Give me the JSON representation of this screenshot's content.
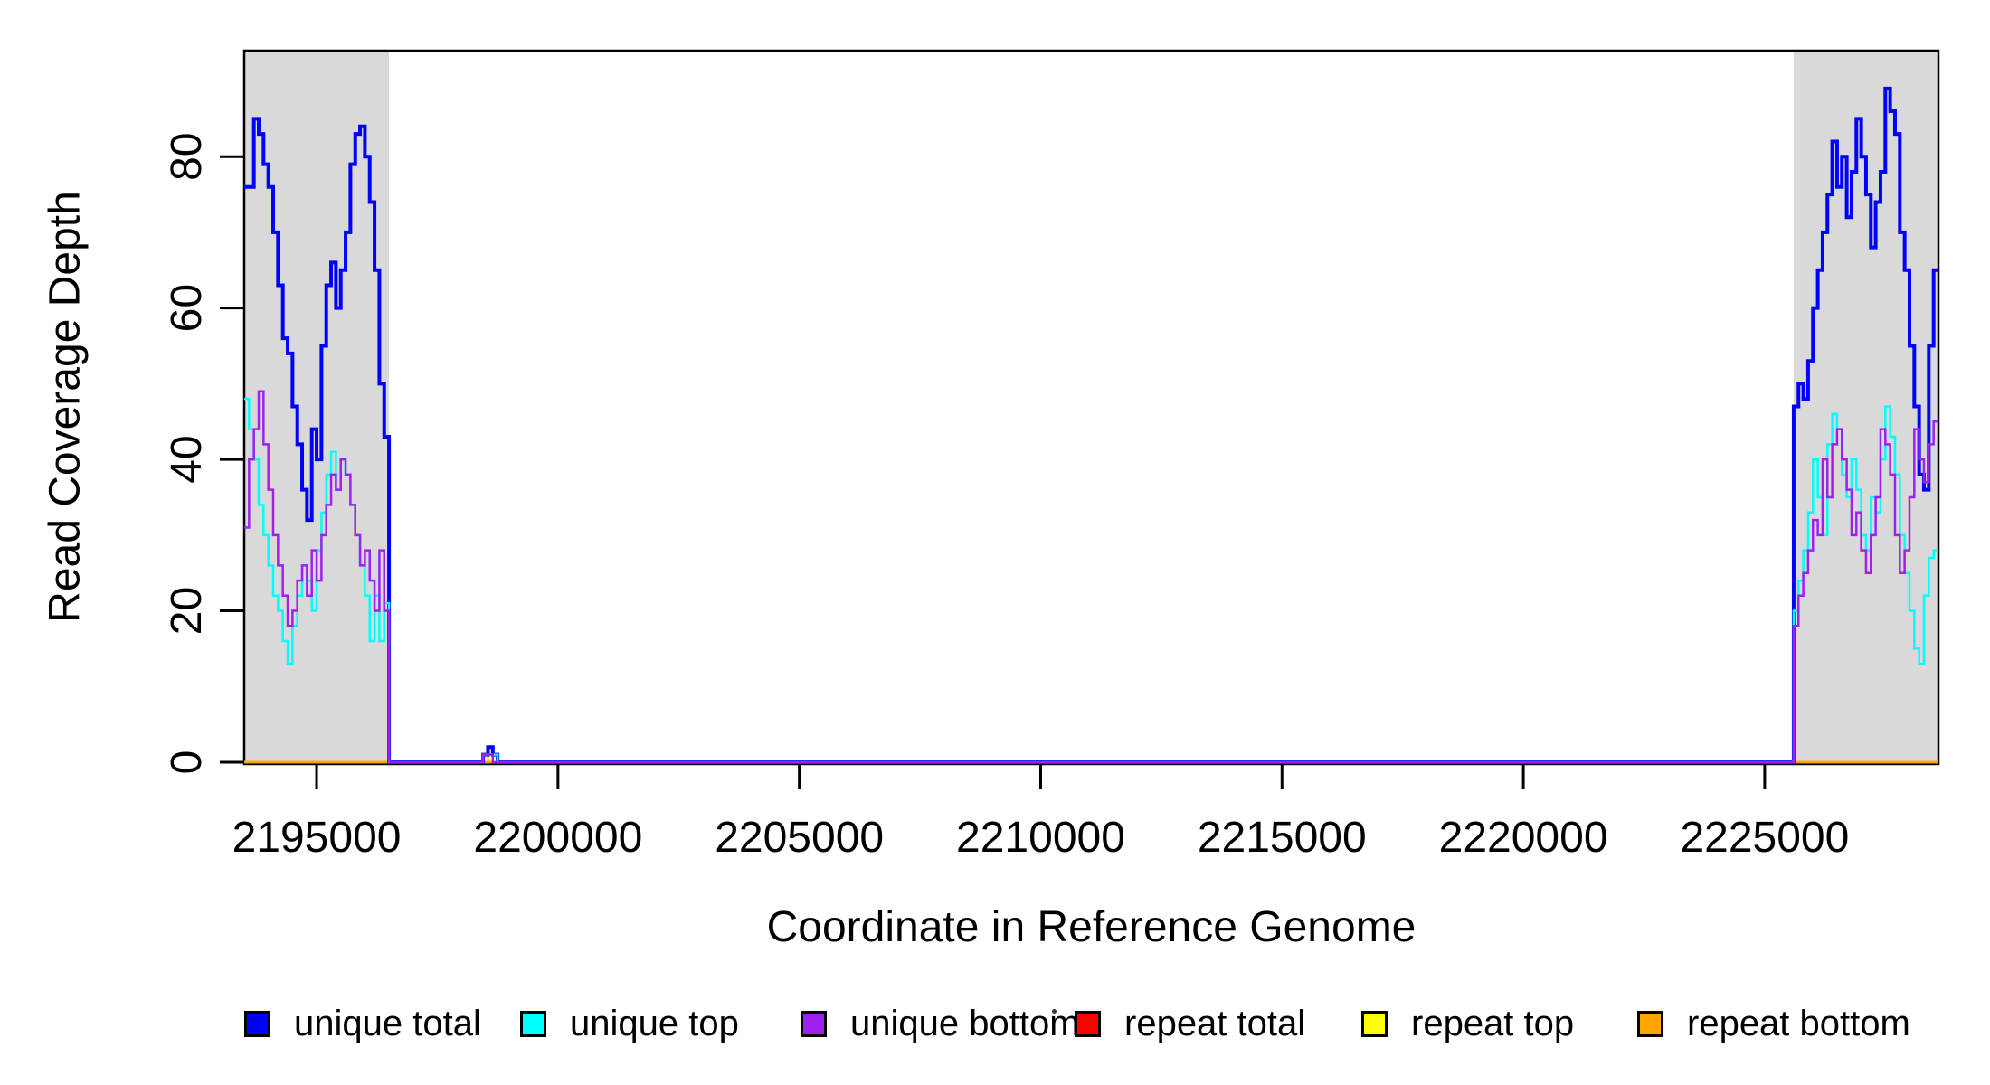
{
  "figure": {
    "background": "#FFFFFF",
    "axis_color": "#000000",
    "shaded_region_color": "#D9D9D9"
  },
  "chart_data": {
    "type": "line",
    "subtype": "step",
    "title": "",
    "xlabel": "Coordinate in Reference Genome",
    "ylabel": "Read Coverage Depth",
    "xlim": [
      2193500,
      2228600
    ],
    "ylim": [
      0,
      94
    ],
    "grid": false,
    "legend_position": "bottom",
    "x_ticks": {
      "values": [
        2195000,
        2200000,
        2205000,
        2210000,
        2215000,
        2220000,
        2225000
      ],
      "labels": [
        "2195000",
        "2200000",
        "2205000",
        "2210000",
        "2215000",
        "2220000",
        "2225000"
      ]
    },
    "y_ticks": {
      "values": [
        0,
        20,
        40,
        60,
        80
      ],
      "labels": [
        "0",
        "20",
        "40",
        "60",
        "80"
      ]
    },
    "shaded_regions": [
      {
        "x0": 2193500,
        "x1": 2196500
      },
      {
        "x0": 2225600,
        "x1": 2228600
      }
    ],
    "draw_order": [
      "repeat total",
      "repeat top",
      "repeat bottom",
      "unique total",
      "unique top",
      "unique bottom"
    ],
    "series": [
      {
        "name": "unique total",
        "color": "#0000FF",
        "line_width": 4,
        "segments": [
          {
            "x0": 2193500,
            "dx": 100,
            "values": [
              76,
              76,
              85,
              83,
              79,
              76,
              70,
              63,
              56,
              54,
              47,
              42,
              36,
              32,
              44,
              40,
              55,
              63,
              66,
              60,
              65,
              70,
              79,
              83,
              84,
              80,
              74,
              65,
              50,
              43
            ]
          },
          {
            "x0": 2196500,
            "x1": 2198450,
            "value": 0
          },
          {
            "x0": 2198450,
            "dx": 100,
            "values": [
              1,
              2,
              1
            ]
          },
          {
            "x0": 2198750,
            "x1": 2225600,
            "value": 0
          },
          {
            "x0": 2225600,
            "dx": 100,
            "values": [
              47,
              50,
              48,
              53,
              60,
              65,
              70,
              75,
              82,
              76,
              80,
              72,
              78,
              85,
              80,
              75,
              68,
              74,
              78,
              89,
              86,
              83,
              70,
              65,
              55,
              47,
              38,
              36,
              55,
              65
            ]
          }
        ]
      },
      {
        "name": "unique top",
        "color": "#00FFFF",
        "line_width": 2.5,
        "segments": [
          {
            "x0": 2193500,
            "dx": 100,
            "values": [
              48,
              44,
              40,
              34,
              30,
              26,
              22,
              20,
              16,
              13,
              18,
              22,
              26,
              24,
              20,
              28,
              33,
              38,
              41,
              36,
              40,
              38,
              34,
              30,
              26,
              22,
              16,
              22,
              16,
              21
            ]
          },
          {
            "x0": 2196500,
            "x1": 2198450,
            "value": 0
          },
          {
            "x0": 2198450,
            "dx": 100,
            "values": [
              1,
              1,
              1
            ]
          },
          {
            "x0": 2198750,
            "x1": 2225600,
            "value": 0
          },
          {
            "x0": 2225600,
            "dx": 100,
            "values": [
              20,
              24,
              28,
              33,
              40,
              35,
              30,
              42,
              46,
              44,
              38,
              35,
              40,
              36,
              30,
              28,
              35,
              33,
              40,
              47,
              43,
              38,
              30,
              25,
              20,
              15,
              13,
              22,
              27,
              28
            ]
          }
        ]
      },
      {
        "name": "unique bottom",
        "color": "#A020F0",
        "line_width": 2.5,
        "segments": [
          {
            "x0": 2193500,
            "dx": 100,
            "values": [
              31,
              40,
              44,
              49,
              42,
              36,
              30,
              26,
              22,
              18,
              20,
              24,
              26,
              22,
              28,
              24,
              30,
              34,
              38,
              36,
              40,
              38,
              34,
              30,
              26,
              28,
              24,
              20,
              28,
              20
            ]
          },
          {
            "x0": 2196500,
            "x1": 2198450,
            "value": 0
          },
          {
            "x0": 2198450,
            "dx": 100,
            "values": [
              1,
              1
            ]
          },
          {
            "x0": 2198650,
            "x1": 2225600,
            "value": 0
          },
          {
            "x0": 2225600,
            "dx": 100,
            "values": [
              18,
              22,
              25,
              28,
              32,
              30,
              40,
              35,
              42,
              44,
              40,
              36,
              30,
              33,
              28,
              25,
              30,
              35,
              44,
              42,
              38,
              30,
              25,
              28,
              35,
              44,
              40,
              37,
              42,
              45
            ]
          }
        ]
      },
      {
        "name": "repeat total",
        "color": "#FF0000",
        "line_width": 2.5,
        "segments": [
          {
            "x0": 2193500,
            "x1": 2198450,
            "value": 0
          },
          {
            "x0": 2198450,
            "dx": 100,
            "values": [
              1
            ]
          },
          {
            "x0": 2198550,
            "x1": 2228600,
            "value": 0
          }
        ]
      },
      {
        "name": "repeat top",
        "color": "#FFFF00",
        "line_width": 2.5,
        "segments": [
          {
            "x0": 2193500,
            "x1": 2198550,
            "value": 0
          },
          {
            "x0": 2198550,
            "dx": 100,
            "values": [
              1
            ]
          },
          {
            "x0": 2198650,
            "x1": 2228600,
            "value": 0
          }
        ]
      },
      {
        "name": "repeat bottom",
        "color": "#FFA500",
        "line_width": 2.5,
        "segments": [
          {
            "x0": 2193500,
            "x1": 2228600,
            "value": 0
          }
        ]
      }
    ]
  },
  "legend": {
    "items": [
      {
        "label": "unique total",
        "color": "#0000FF"
      },
      {
        "label": "unique top",
        "color": "#00FFFF"
      },
      {
        "label": "unique bottom",
        "color": "#A020F0"
      },
      {
        "label": "repeat total",
        "color": "#FF0000"
      },
      {
        "label": "repeat top",
        "color": "#FFFF00"
      },
      {
        "label": "repeat bottom",
        "color": "#FFA500"
      }
    ]
  }
}
